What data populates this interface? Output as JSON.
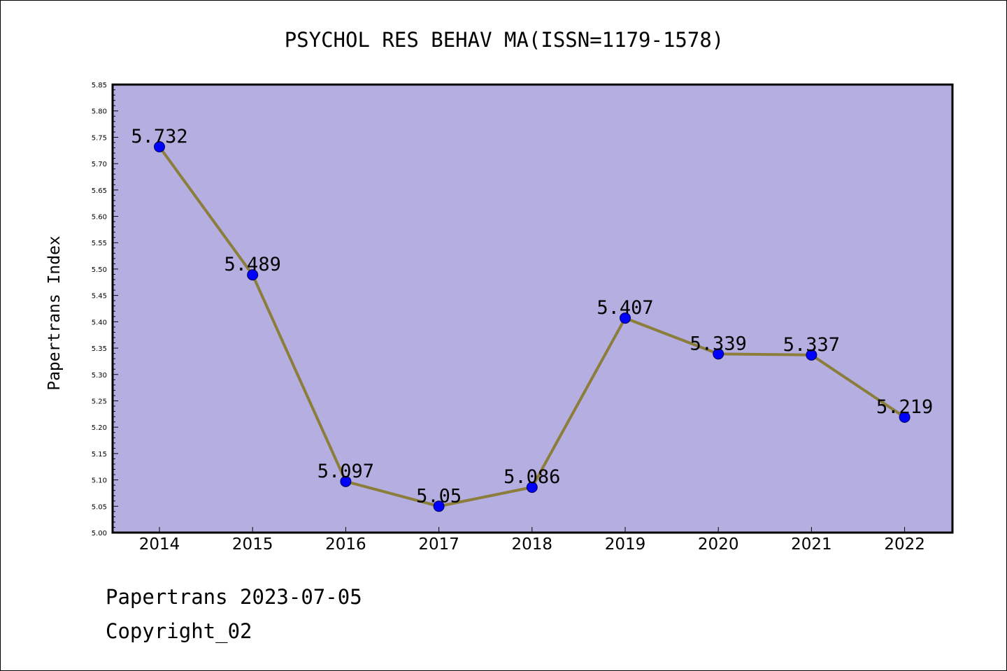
{
  "chart_data": {
    "type": "line",
    "title": "PSYCHOL RES BEHAV MA(ISSN=1179-1578)",
    "xlabel": "",
    "ylabel": "Papertrans Index",
    "x": [
      "2014",
      "2015",
      "2016",
      "2017",
      "2018",
      "2019",
      "2020",
      "2021",
      "2022"
    ],
    "values": [
      5.732,
      5.489,
      5.097,
      5.05,
      5.086,
      5.407,
      5.339,
      5.337,
      5.219
    ],
    "data_labels": [
      "5.732",
      "5.489",
      "5.097",
      "5.05",
      "5.086",
      "5.407",
      "5.339",
      "5.337",
      "5.219"
    ],
    "ylim": [
      5.0,
      5.85
    ],
    "yticks": [
      "5.00",
      "5.05",
      "5.10",
      "5.15",
      "5.20",
      "5.25",
      "5.30",
      "5.35",
      "5.40",
      "5.45",
      "5.50",
      "5.55",
      "5.60",
      "5.65",
      "5.70",
      "5.75",
      "5.80",
      "5.85"
    ],
    "grid": false,
    "colors": {
      "plot_background": "#b5aee1",
      "line": "#8b7d3a",
      "marker": "#0000ff"
    }
  },
  "footer": {
    "date_line": "Papertrans 2023-07-05",
    "copyright_line": "Copyright_02"
  }
}
